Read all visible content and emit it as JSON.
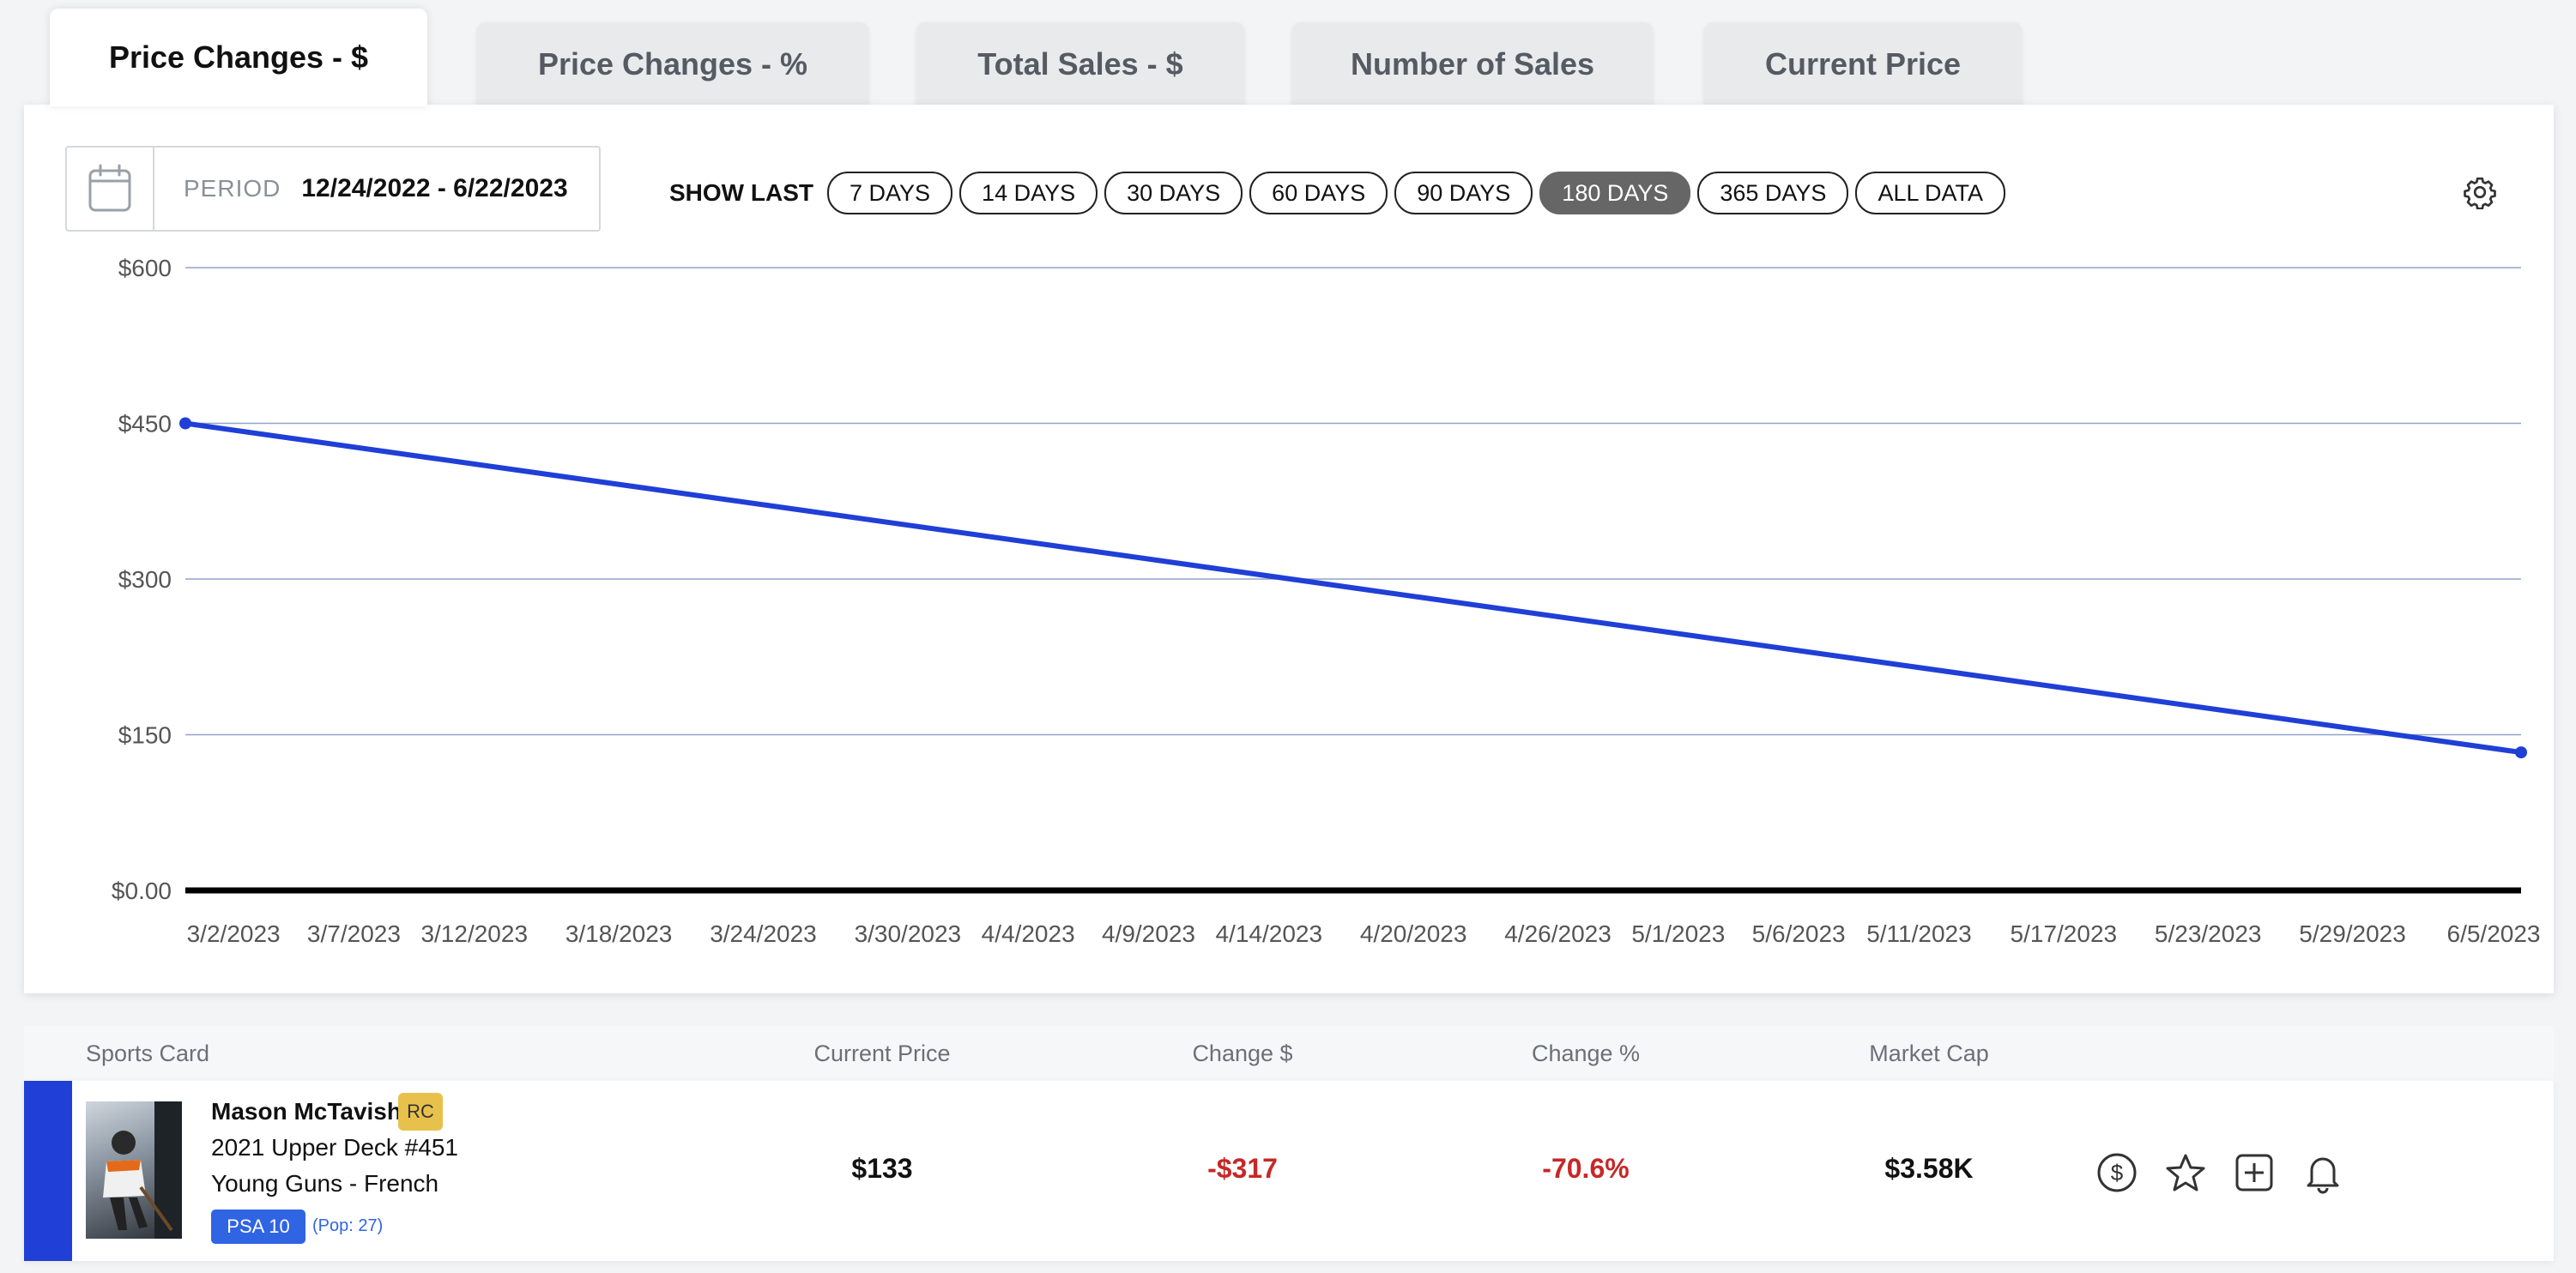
{
  "tabs": [
    {
      "label": "Price Changes - $",
      "active": true
    },
    {
      "label": "Price Changes - %",
      "active": false
    },
    {
      "label": "Total Sales - $",
      "active": false
    },
    {
      "label": "Number of Sales",
      "active": false
    },
    {
      "label": "Current Price",
      "active": false
    }
  ],
  "period": {
    "label": "PERIOD",
    "value": "12/24/2022 - 6/22/2023",
    "icon": "calendar-icon"
  },
  "show_last": {
    "label": "SHOW LAST",
    "options": [
      "7 DAYS",
      "14 DAYS",
      "30 DAYS",
      "60 DAYS",
      "90 DAYS",
      "180 DAYS",
      "365 DAYS",
      "ALL DATA"
    ],
    "selected": "180 DAYS"
  },
  "settings_icon": "gear-icon",
  "chart_data": {
    "type": "line",
    "x_tick_labels": [
      "3/2/2023",
      "3/7/2023",
      "3/12/2023",
      "3/18/2023",
      "3/24/2023",
      "3/30/2023",
      "4/4/2023",
      "4/9/2023",
      "4/14/2023",
      "4/20/2023",
      "4/26/2023",
      "5/1/2023",
      "5/6/2023",
      "5/11/2023",
      "5/17/2023",
      "5/23/2023",
      "5/29/2023",
      "6/5/2023"
    ],
    "y_tick_labels": [
      "$0.00",
      "$150",
      "$300",
      "$450",
      "$600"
    ],
    "y_ticks": [
      0,
      150,
      300,
      450,
      600
    ],
    "ylim": [
      0,
      600
    ],
    "xlim": [
      "2023-02-28",
      "2023-06-05"
    ],
    "series": [
      {
        "color": "#1f3fd6",
        "points": [
          {
            "x": "2023-02-28",
            "y": 450
          },
          {
            "x": "2023-06-05",
            "y": 133
          }
        ]
      }
    ],
    "grid": true,
    "grid_color": "#8fa4c8",
    "baseline_color": "#000000"
  },
  "table": {
    "headers": [
      "Sports Card",
      "Current Price",
      "Change $",
      "Change %",
      "Market Cap"
    ],
    "rows": [
      {
        "player": "Mason McTavish",
        "rc_badge": "RC",
        "set": "2021 Upper Deck #451",
        "variant": "Young Guns - French",
        "grade": "PSA 10",
        "pop": "(Pop: 27)",
        "current_price": "$133",
        "change_dollar": "-$317",
        "change_pct": "-70.6%",
        "market_cap": "$3.58K",
        "actions": [
          "dollar-circle-icon",
          "star-icon",
          "add-square-icon",
          "bell-icon"
        ],
        "accent_color": "#1f3fd6"
      }
    ]
  },
  "colors": {
    "accent": "#1f3fd6",
    "negative": "#c62828",
    "badge_rc": "#e8c14d",
    "badge_grade": "#2f64e3"
  }
}
